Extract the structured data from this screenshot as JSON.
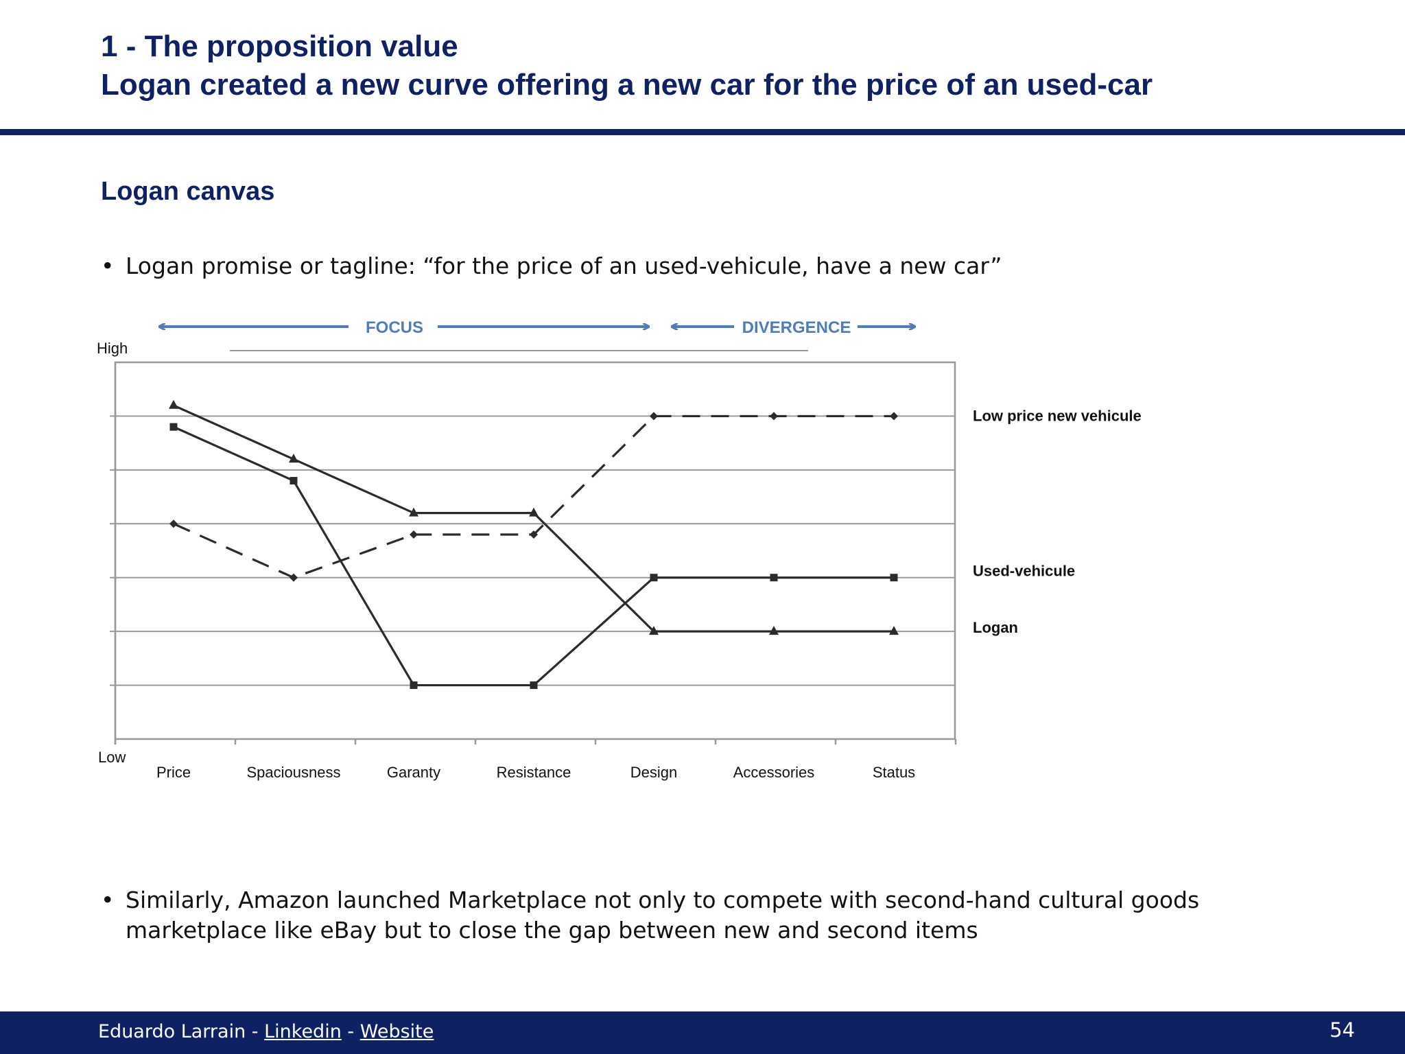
{
  "slide": {
    "title_line1": "1 - The proposition value",
    "title_line2": "Logan created a new curve offering a new car for the price of an used-car",
    "section_title": "Logan canvas",
    "bullet1": "Logan promise or tagline: “for the price of an used-vehicule, have a new car”",
    "bullet2_line1": "Similarly, Amazon launched Marketplace not only to compete with second-hand cultural goods",
    "bullet2_line2": "marketplace like eBay but to close the gap between new and second items",
    "bullet_glyph": "•"
  },
  "colors": {
    "navy": "#0d2163",
    "arrow_blue": "#4f7db5",
    "grid": "#9a9a9a",
    "line": "#2b2b2b"
  },
  "chart_data": {
    "type": "line",
    "top_labels": {
      "focus": "FOCUS",
      "divergence": "DIVERGENCE"
    },
    "axis": {
      "high_label": "High",
      "low_label": "Low"
    },
    "categories": [
      "Price",
      "Spaciousness",
      "Garanty",
      "Resistance",
      "Design",
      "Accessories",
      "Status"
    ],
    "ylim": [
      0,
      7
    ],
    "grid": true,
    "series": [
      {
        "name": "Low price new vehicule",
        "style": "dashed",
        "marker": "diamond",
        "values": [
          4.0,
          3.0,
          3.8,
          3.8,
          6.0,
          6.0,
          6.0
        ]
      },
      {
        "name": "Used-vehicule",
        "style": "solid",
        "marker": "square",
        "values": [
          5.8,
          4.8,
          1.0,
          1.0,
          3.0,
          3.0,
          3.0
        ]
      },
      {
        "name": "Logan",
        "style": "solid",
        "marker": "triangle",
        "values": [
          6.2,
          5.2,
          4.2,
          4.2,
          2.0,
          2.0,
          2.0
        ]
      }
    ]
  },
  "footer": {
    "author": "Eduardo Larrain - ",
    "linkedin": "Linkedin",
    "separator": " - ",
    "website": "Website",
    "page_number": "54"
  }
}
